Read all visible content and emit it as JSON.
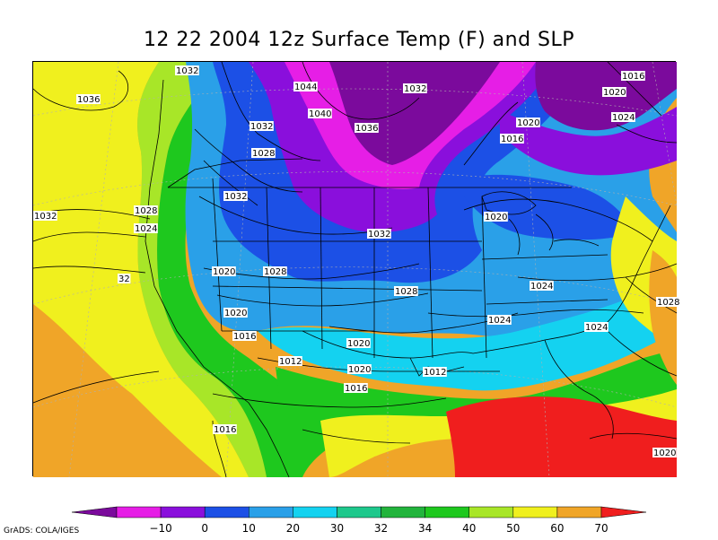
{
  "title": "12 22 2004 12z Surface Temp (F) and SLP",
  "credit": "GrADS: COLA/IGES",
  "colorbar": {
    "colors": [
      "#7b0a9c",
      "#e61ee6",
      "#8a0fdc",
      "#1c50e6",
      "#2aa0e8",
      "#14d2f0",
      "#1ec88c",
      "#22b43c",
      "#1ec81e",
      "#a8e628",
      "#f0f01e",
      "#f0a528",
      "#f01e1e"
    ],
    "ticks": [
      "-10",
      "0",
      "10",
      "20",
      "30",
      "32",
      "34",
      "40",
      "50",
      "60",
      "70"
    ]
  },
  "isobar_labels": [
    "1032",
    "1016",
    "1036",
    "1044",
    "1032",
    "1020",
    "1040",
    "1024",
    "1032",
    "1036",
    "1020",
    "1016",
    "1028",
    "1032",
    "1028",
    "1032",
    "1020",
    "1024",
    "1032",
    "1028",
    "1020",
    "1028",
    "1028",
    "1024",
    "1020",
    "1016",
    "1024",
    "1024",
    "1020",
    "1012",
    "1020",
    "1012",
    "1016",
    "1016",
    "1020",
    "32"
  ]
}
